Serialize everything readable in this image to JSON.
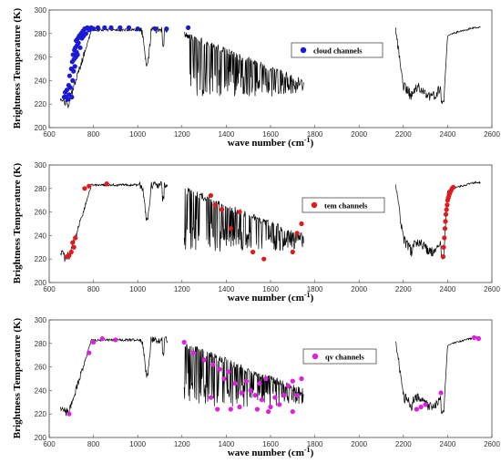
{
  "chart_data": [
    {
      "type": "line",
      "xlabel": "wave number (cm",
      "xlabel_sup": "-1",
      "xlabel_close": ")",
      "ylabel": "Brightness Temperature (K)",
      "xlim": [
        600,
        2600
      ],
      "ylim": [
        200,
        300
      ],
      "xticks": [
        600,
        800,
        1000,
        1200,
        1400,
        1600,
        1800,
        2000,
        2200,
        2400,
        2600
      ],
      "yticks": [
        200,
        220,
        240,
        260,
        280,
        300
      ],
      "legend_position": "top-right",
      "legend": "cloud channels",
      "marker_color": "#1a1ad6",
      "spectrum_color": "#000000",
      "channels": {
        "x": [
          668,
          672,
          676,
          680,
          684,
          688,
          690,
          692,
          696,
          700,
          702,
          704,
          706,
          708,
          710,
          712,
          714,
          716,
          718,
          720,
          722,
          724,
          726,
          728,
          730,
          732,
          736,
          740,
          744,
          748,
          752,
          756,
          760,
          766,
          772,
          780,
          790,
          800,
          820,
          850,
          880,
          920,
          960,
          1000,
          1080,
          1130,
          1228
        ],
        "y": [
          226,
          230,
          226,
          232,
          224,
          236,
          228,
          244,
          234,
          250,
          226,
          256,
          240,
          262,
          248,
          258,
          266,
          252,
          268,
          260,
          274,
          264,
          270,
          262,
          276,
          272,
          278,
          268,
          280,
          276,
          282,
          278,
          284,
          280,
          285,
          283,
          285,
          284,
          285,
          285,
          285,
          285,
          285,
          284,
          284,
          284,
          285
        ]
      }
    },
    {
      "type": "line",
      "xlabel": "wave number (cm",
      "xlabel_sup": "-1",
      "xlabel_close": ")",
      "ylabel": "Brightness Temperature (K)",
      "xlim": [
        600,
        2600
      ],
      "ylim": [
        200,
        300
      ],
      "xticks": [
        600,
        800,
        1000,
        1200,
        1400,
        1600,
        1800,
        2000,
        2200,
        2400,
        2600
      ],
      "yticks": [
        200,
        220,
        240,
        260,
        280,
        300
      ],
      "legend_position": "top-right",
      "legend": "tem channels",
      "marker_color": "#e01b1b",
      "spectrum_color": "#000000",
      "channels": {
        "x": [
          680,
          690,
          700,
          706,
          712,
          718,
          760,
          780,
          860,
          1330,
          1350,
          1380,
          1420,
          1460,
          1520,
          1570,
          1700,
          1720,
          1740,
          2380,
          2382,
          2385,
          2388,
          2390,
          2392,
          2395,
          2398,
          2400,
          2403,
          2406,
          2410,
          2415,
          2420,
          2425
        ],
        "y": [
          222,
          223,
          226,
          234,
          230,
          238,
          280,
          282,
          284,
          274,
          266,
          262,
          246,
          260,
          226,
          220,
          226,
          242,
          250,
          222,
          230,
          238,
          246,
          252,
          258,
          262,
          266,
          270,
          272,
          274,
          276,
          278,
          280,
          281
        ]
      }
    },
    {
      "type": "line",
      "xlabel": "wave number (cm",
      "xlabel_sup": "-1",
      "xlabel_close": ")",
      "ylabel": "Brightness Temperature (K)",
      "xlim": [
        600,
        2600
      ],
      "ylim": [
        200,
        300
      ],
      "xticks": [
        600,
        800,
        1000,
        1200,
        1400,
        1600,
        1800,
        2000,
        2200,
        2400,
        2600
      ],
      "yticks": [
        200,
        220,
        240,
        260,
        280,
        300
      ],
      "legend_position": "top-right",
      "legend": "qv channels",
      "marker_color": "#e020e0",
      "spectrum_color": "#000000",
      "channels": {
        "x": [
          690,
          780,
          800,
          840,
          900,
          1210,
          1250,
          1300,
          1340,
          1370,
          1390,
          1410,
          1440,
          1470,
          1490,
          1510,
          1530,
          1550,
          1560,
          1580,
          1600,
          1620,
          1640,
          1660,
          1680,
          1700,
          1720,
          1740,
          1330,
          1360,
          1420,
          1460,
          1540,
          1590,
          1700,
          2260,
          2280,
          2300,
          2370,
          2520,
          2540
        ],
        "y": [
          220,
          272,
          281,
          284,
          283,
          281,
          272,
          266,
          262,
          258,
          250,
          256,
          246,
          238,
          248,
          240,
          236,
          246,
          232,
          250,
          226,
          234,
          228,
          236,
          244,
          248,
          236,
          250,
          234,
          224,
          224,
          226,
          224,
          222,
          222,
          224,
          226,
          228,
          238,
          285,
          284
        ]
      }
    }
  ]
}
